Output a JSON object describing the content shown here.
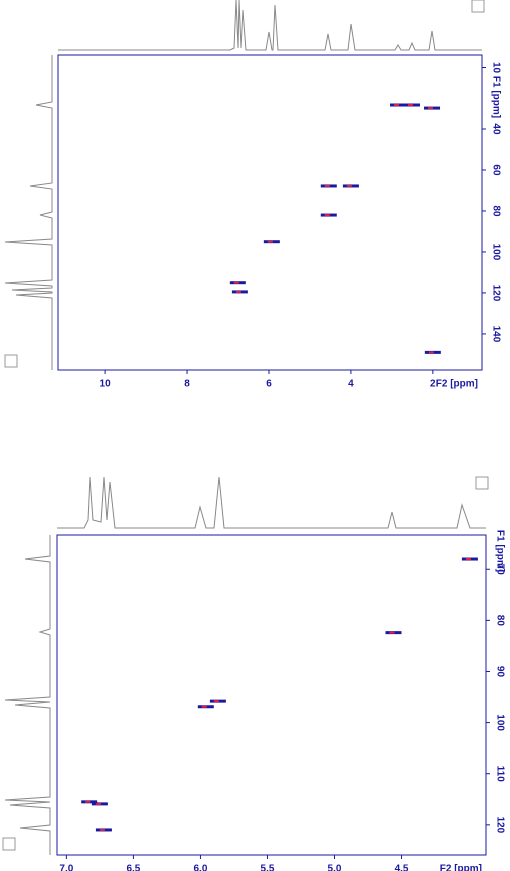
{
  "chart_data": [
    {
      "type": "scatter",
      "x_label": "F2 [ppm]",
      "y_label": "F1 [ppm]",
      "xlim": [
        11.15,
        0.8
      ],
      "xticks": [
        10,
        8,
        6,
        4,
        2
      ],
      "ylim": [
        3.9,
        157.6
      ],
      "yticks": [
        10,
        40,
        60,
        80,
        100,
        120,
        140
      ],
      "color": "#1a1aa0",
      "accent_color": "#e0204a",
      "series": [
        {
          "color": "#1a1aa0",
          "x": [
            2.85,
            2.51,
            2.02,
            4.54,
            4.0,
            4.54,
            5.93,
            6.76,
            6.71,
            2.0
          ],
          "values": [
            28.3,
            28.3,
            29.8,
            67.8,
            67.8,
            82,
            95,
            115,
            119.5,
            149
          ]
        }
      ]
    },
    {
      "type": "scatter",
      "x_label": "F2 [ppm]",
      "y_label": "F1 [ppm]",
      "xlim": [
        7.07,
        3.87
      ],
      "xticks": [
        {
          "value": 7,
          "label": "7.0"
        },
        6.5,
        {
          "value": 6,
          "label": "6.0"
        },
        5.5,
        {
          "value": 5,
          "label": "5.0"
        },
        4.5
      ],
      "ylim": [
        63.3,
        125.9
      ],
      "yticks": [
        70,
        80,
        90,
        100,
        110,
        120
      ],
      "color": "#1a1aa0",
      "accent_color": "#e0204a",
      "series": [
        {
          "color": "#1a1aa0",
          "x": [
            3.99,
            4.56,
            5.87,
            5.96,
            6.75,
            6.83,
            6.72
          ],
          "values": [
            68.0,
            82.4,
            95.8,
            96.9,
            115.9,
            115.5,
            121
          ]
        }
      ]
    }
  ]
}
